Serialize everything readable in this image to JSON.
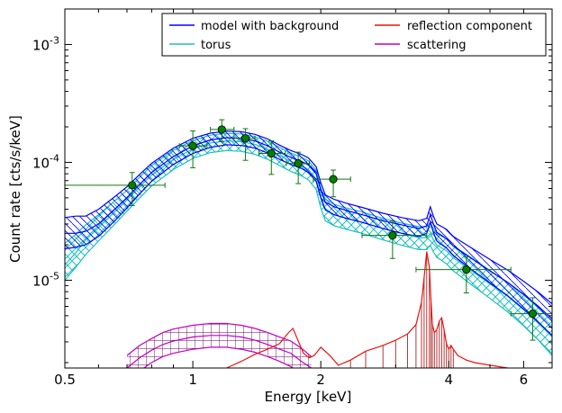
{
  "chart_data": {
    "type": "line",
    "xlabel": "Energy [keV]",
    "ylabel": "Count rate [cts/s/keV]",
    "xscale": "log",
    "yscale": "log",
    "xlim": [
      0.5,
      7.0
    ],
    "ylim": [
      1.8e-06,
      0.002
    ],
    "grid": false,
    "legend_position": "top-right",
    "x_ticks": [
      {
        "value": 0.5,
        "label": "0.5"
      },
      {
        "value": 1,
        "label": "1"
      },
      {
        "value": 2,
        "label": "2"
      },
      {
        "value": 4,
        "label": "4"
      },
      {
        "value": 6,
        "label": "6"
      }
    ],
    "y_ticks": [
      {
        "value": 1e-05,
        "base": "10",
        "exp": "-5"
      },
      {
        "value": 0.0001,
        "base": "10",
        "exp": "-4"
      },
      {
        "value": 0.001,
        "base": "10",
        "exp": "-3"
      }
    ],
    "colors": {
      "model": "#0000ff",
      "torus": "#1fbfbf",
      "reflection": "#ee1111",
      "scattering": "#bf00bf",
      "data": "#117711",
      "data_fill": "#008000",
      "reflection_hatch": "#aa2222",
      "scattering_hatch": "#660066"
    },
    "legend": [
      {
        "label": "model with background",
        "color": "#0000ff"
      },
      {
        "label": "reflection component",
        "color": "#ee1111"
      },
      {
        "label": "torus",
        "color": "#1fbfbf"
      },
      {
        "label": "scattering",
        "color": "#bf00bf"
      }
    ],
    "series": [
      {
        "key": "model",
        "x": [
          0.5,
          0.53,
          0.56,
          0.6,
          0.65,
          0.7,
          0.75,
          0.8,
          0.9,
          1.0,
          1.1,
          1.2,
          1.3,
          1.4,
          1.5,
          1.6,
          1.7,
          1.8,
          1.87,
          1.95,
          2.0,
          2.05,
          2.15,
          2.3,
          2.5,
          2.8,
          3.1,
          3.4,
          3.55,
          3.62,
          3.68,
          3.75,
          3.85,
          3.95,
          4.1,
          4.5,
          5.0,
          5.5,
          6.0,
          6.5,
          7.0
        ],
        "center": [
          2.5e-05,
          2.5e-05,
          2.6e-05,
          3e-05,
          3.9e-05,
          5e-05,
          6.5e-05,
          8.2e-05,
          0.000112,
          0.000138,
          0.000155,
          0.000162,
          0.00016,
          0.000152,
          0.000138,
          0.000122,
          0.00011,
          0.000102,
          9.5e-05,
          8e-05,
          5.8e-05,
          4.6e-05,
          4.2e-05,
          3.9e-05,
          3.6e-05,
          3.2e-05,
          2.95e-05,
          2.75e-05,
          2.9e-05,
          3.6e-05,
          3e-05,
          2.55e-05,
          2.4e-05,
          2.25e-05,
          1.95e-05,
          1.55e-05,
          1.2e-05,
          9.6e-06,
          7.6e-06,
          6e-06,
          4.7e-06
        ],
        "lower": [
          1.85e-05,
          1.9e-05,
          2e-05,
          2.35e-05,
          3.1e-05,
          4.1e-05,
          5.4e-05,
          6.9e-05,
          9.6e-05,
          0.000119,
          0.000134,
          0.000141,
          0.000139,
          0.000132,
          0.00012,
          0.000106,
          9.6e-05,
          8.9e-05,
          8.2e-05,
          6.9e-05,
          5e-05,
          3.95e-05,
          3.6e-05,
          3.35e-05,
          3.1e-05,
          2.75e-05,
          2.5e-05,
          2.35e-05,
          2.5e-05,
          3.1e-05,
          2.55e-05,
          2.15e-05,
          2e-05,
          1.88e-05,
          1.62e-05,
          1.25e-05,
          9.5e-06,
          7.4e-06,
          5.7e-06,
          4.4e-06,
          3.4e-06
        ],
        "upper": [
          3.4e-05,
          3.5e-05,
          3.5e-05,
          4e-05,
          5e-05,
          6.2e-05,
          7.9e-05,
          9.8e-05,
          0.000132,
          0.00016,
          0.000177,
          0.000184,
          0.000182,
          0.000173,
          0.000158,
          0.00014,
          0.000126,
          0.000117,
          0.000109,
          9.2e-05,
          6.7e-05,
          5.3e-05,
          4.85e-05,
          4.5e-05,
          4.15e-05,
          3.7e-05,
          3.4e-05,
          3.2e-05,
          3.35e-05,
          4.2e-05,
          3.5e-05,
          3e-05,
          2.85e-05,
          2.7e-05,
          2.35e-05,
          1.9e-05,
          1.5e-05,
          1.22e-05,
          9.8e-06,
          7.9e-06,
          6.3e-06
        ]
      },
      {
        "key": "torus",
        "x": [
          0.5,
          0.53,
          0.56,
          0.6,
          0.65,
          0.7,
          0.75,
          0.8,
          0.9,
          1.0,
          1.1,
          1.2,
          1.3,
          1.4,
          1.5,
          1.6,
          1.7,
          1.8,
          1.87,
          1.95,
          2.0,
          2.05,
          2.15,
          2.3,
          2.5,
          2.8,
          3.1,
          3.4,
          3.55,
          3.62,
          3.68,
          3.75,
          3.85,
          3.95,
          4.1,
          4.5,
          5.0,
          5.5,
          6.0,
          6.5,
          7.0
        ],
        "center": [
          1.35e-05,
          1.7e-05,
          2.2e-05,
          2.8e-05,
          3.7e-05,
          4.8e-05,
          6.2e-05,
          7.8e-05,
          0.000106,
          0.00013,
          0.000146,
          0.000152,
          0.00015,
          0.000142,
          0.000129,
          0.000114,
          0.000102,
          9.4e-05,
          8.7e-05,
          7.2e-05,
          5.1e-05,
          4e-05,
          3.6e-05,
          3.35e-05,
          3.1e-05,
          2.75e-05,
          2.5e-05,
          2.3e-05,
          2.3e-05,
          2.5e-05,
          2.2e-05,
          1.98e-05,
          1.88e-05,
          1.78e-05,
          1.55e-05,
          1.22e-05,
          9.3e-06,
          7.3e-06,
          5.6e-06,
          4.3e-06,
          3.3e-06
        ],
        "lower": [
          1e-05,
          1.28e-05,
          1.65e-05,
          2.15e-05,
          2.9e-05,
          3.85e-05,
          5e-05,
          6.3e-05,
          8.7e-05,
          0.000108,
          0.000121,
          0.000126,
          0.000124,
          0.000117,
          0.000106,
          9.4e-05,
          8.4e-05,
          7.7e-05,
          7.1e-05,
          5.9e-05,
          4.1e-05,
          3.2e-05,
          2.9e-05,
          2.7e-05,
          2.5e-05,
          2.2e-05,
          1.98e-05,
          1.82e-05,
          1.82e-05,
          1.98e-05,
          1.74e-05,
          1.56e-05,
          1.47e-05,
          1.38e-05,
          1.2e-05,
          9.3e-06,
          7e-06,
          5.4e-06,
          4.1e-06,
          3.1e-06,
          2.3e-06
        ],
        "upper": [
          2.05e-05,
          2.45e-05,
          2.95e-05,
          3.6e-05,
          4.6e-05,
          5.8e-05,
          7.5e-05,
          9.4e-05,
          0.000127,
          0.000153,
          0.00017,
          0.000176,
          0.000174,
          0.000165,
          0.000151,
          0.000134,
          0.00012,
          0.000111,
          0.000103,
          8.6e-05,
          6.1e-05,
          4.9e-05,
          4.4e-05,
          4.1e-05,
          3.8e-05,
          3.35e-05,
          3.05e-05,
          2.85e-05,
          2.85e-05,
          3.1e-05,
          2.75e-05,
          2.48e-05,
          2.36e-05,
          2.25e-05,
          1.96e-05,
          1.57e-05,
          1.21e-05,
          9.6e-06,
          7.5e-06,
          5.8e-06,
          4.5e-06
        ]
      },
      {
        "key": "reflection",
        "x": [
          1.2,
          1.3,
          1.4,
          1.5,
          1.6,
          1.68,
          1.72,
          1.76,
          1.82,
          1.88,
          1.93,
          2.0,
          2.1,
          2.2,
          2.35,
          2.55,
          2.8,
          3.0,
          3.2,
          3.35,
          3.45,
          3.5,
          3.55,
          3.6,
          3.63,
          3.66,
          3.7,
          3.75,
          3.8,
          3.85,
          3.9,
          3.95,
          4.0,
          4.05,
          4.1,
          4.2,
          4.4,
          4.6,
          5.0,
          5.5
        ],
        "center": [
          1.8e-06,
          2.05e-06,
          2.35e-06,
          2.6e-06,
          2.9e-06,
          3.6e-06,
          3.9e-06,
          3.2e-06,
          2.4e-06,
          2.2e-06,
          2.3e-06,
          2.7e-06,
          2.3e-06,
          1.9e-06,
          2.1e-06,
          2.5e-06,
          2.8e-06,
          3.1e-06,
          3.5e-06,
          4.2e-06,
          6.5e-06,
          1.05e-05,
          1.75e-05,
          1.3e-05,
          7e-06,
          4.2e-06,
          3.6e-06,
          3.8e-06,
          4.5e-06,
          4.8e-06,
          3.8e-06,
          2.9e-06,
          2.6e-06,
          2.8e-06,
          2.6e-06,
          2.3e-06,
          2.1e-06,
          2e-06,
          1.9e-06,
          1.8e-06
        ]
      },
      {
        "key": "scattering",
        "x": [
          0.7,
          0.75,
          0.8,
          0.85,
          0.9,
          1.0,
          1.1,
          1.2,
          1.3,
          1.4,
          1.5,
          1.6,
          1.7,
          1.8,
          1.9
        ],
        "center": [
          1.8e-06,
          2.2e-06,
          2.55e-06,
          2.85e-06,
          3.05e-06,
          3.3e-06,
          3.4e-06,
          3.4e-06,
          3.3e-06,
          3.1e-06,
          2.85e-06,
          2.6e-06,
          2.4e-06,
          2.05e-06,
          1.8e-06
        ],
        "lower": [
          1.4e-06,
          1.7e-06,
          2e-06,
          2.25e-06,
          2.4e-06,
          2.6e-06,
          2.7e-06,
          2.7e-06,
          2.6e-06,
          2.45e-06,
          2.25e-06,
          2.05e-06,
          1.85e-06,
          1.6e-06,
          1.4e-06
        ],
        "upper": [
          2.3e-06,
          2.8e-06,
          3.2e-06,
          3.6e-06,
          3.85e-06,
          4.15e-06,
          4.3e-06,
          4.3e-06,
          4.15e-06,
          3.9e-06,
          3.6e-06,
          3.3e-06,
          3.05e-06,
          2.65e-06,
          2.25e-06
        ]
      }
    ],
    "data_points": [
      {
        "x": 0.72,
        "y": 6.4e-05,
        "xerr": [
          0.5,
          0.86
        ],
        "yerr": [
          4.3e-05,
          8.2e-05
        ]
      },
      {
        "x": 1.0,
        "y": 0.000138,
        "xerr": [
          0.93,
          1.08
        ],
        "yerr": [
          9e-05,
          0.000185
        ]
      },
      {
        "x": 1.17,
        "y": 0.00019,
        "xerr": [
          1.1,
          1.25
        ],
        "yerr": [
          0.00015,
          0.00023
        ]
      },
      {
        "x": 1.33,
        "y": 0.00016,
        "xerr": [
          1.25,
          1.4
        ],
        "yerr": [
          0.000104,
          0.000193
        ]
      },
      {
        "x": 1.53,
        "y": 0.000119,
        "xerr": [
          1.43,
          1.65
        ],
        "yerr": [
          7.9e-05,
          0.000152
        ]
      },
      {
        "x": 1.77,
        "y": 9.8e-05,
        "xerr": [
          1.66,
          1.88
        ],
        "yerr": [
          6.6e-05,
          0.000122
        ]
      },
      {
        "x": 2.14,
        "y": 7.2e-05,
        "xerr": [
          1.92,
          2.35
        ],
        "yerr": [
          5.1e-05,
          8.6e-05
        ]
      },
      {
        "x": 2.95,
        "y": 2.4e-05,
        "xerr": [
          2.5,
          3.55
        ],
        "yerr": [
          1.53e-05,
          3.2e-05
        ]
      },
      {
        "x": 4.4,
        "y": 1.23e-05,
        "xerr": [
          3.35,
          5.6
        ],
        "yerr": [
          7.8e-06,
          1.58e-05
        ]
      },
      {
        "x": 6.3,
        "y": 5.2e-06,
        "xerr": [
          5.6,
          7.0
        ],
        "yerr": [
          3.1e-06,
          7.1e-06
        ]
      }
    ]
  }
}
